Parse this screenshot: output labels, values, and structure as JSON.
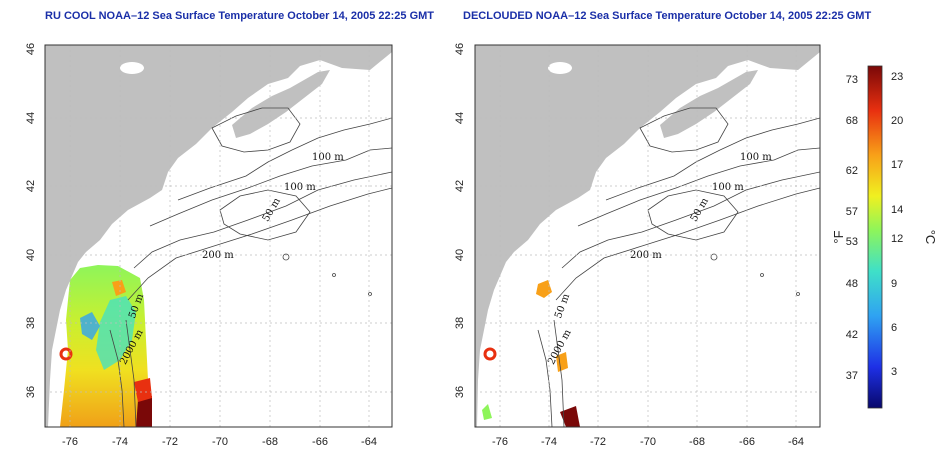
{
  "left_map": {
    "title": "RU COOL NOAA–12 Sea Surface Temperature October 14, 2005 22:25 GMT",
    "contour_labels": [
      "100 m",
      "100 m",
      "50 m",
      "200 m",
      "50 m",
      "2000 m"
    ]
  },
  "right_map": {
    "title": "DECLOUDED NOAA–12 Sea Surface Temperature October 14, 2005 22:25 GMT",
    "contour_labels": [
      "100 m",
      "100 m",
      "50 m",
      "200 m",
      "50 m",
      "2000 m"
    ]
  },
  "axes": {
    "lon_ticks": [
      "-76",
      "-74",
      "-72",
      "-70",
      "-68",
      "-66",
      "-64"
    ],
    "lat_ticks": [
      "46",
      "44",
      "42",
      "40",
      "38",
      "36"
    ]
  },
  "colorbar": {
    "fahrenheit_label": "°F",
    "celsius_label": "°C",
    "fahrenheit_ticks": [
      "73",
      "68",
      "62",
      "57",
      "53",
      "48",
      "42",
      "37"
    ],
    "celsius_ticks": [
      "23",
      "20",
      "17",
      "14",
      "12",
      "9",
      "6",
      "3"
    ],
    "colors": [
      "#08086b",
      "#1e30e6",
      "#2fa3f2",
      "#3fe0c8",
      "#8ef55a",
      "#f0f020",
      "#f8a018",
      "#e83010",
      "#7a0808"
    ]
  },
  "colors": {
    "land": "#c0c0c0",
    "water": "#ffffff",
    "title": "#1a2fa8",
    "grid": "#bdbdbd"
  }
}
